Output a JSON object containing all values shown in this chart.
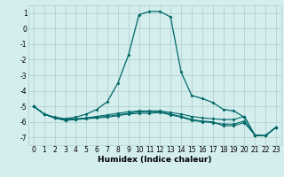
{
  "x": [
    0,
    1,
    2,
    3,
    4,
    5,
    6,
    7,
    8,
    9,
    10,
    11,
    12,
    13,
    14,
    15,
    16,
    17,
    18,
    19,
    20,
    21,
    22,
    23
  ],
  "line_main": [
    -5.0,
    -5.5,
    -5.7,
    -5.8,
    -5.7,
    -5.5,
    -5.2,
    -4.7,
    -3.5,
    -1.7,
    0.9,
    1.1,
    1.1,
    0.75,
    -2.8,
    -4.3,
    -4.5,
    -4.75,
    -5.2,
    -5.3,
    -5.7,
    -6.85,
    -6.9,
    -6.35
  ],
  "line2": [
    -5.0,
    -5.5,
    -5.75,
    -5.85,
    -5.8,
    -5.75,
    -5.65,
    -5.55,
    -5.45,
    -5.35,
    -5.3,
    -5.3,
    -5.3,
    -5.4,
    -5.5,
    -5.65,
    -5.75,
    -5.8,
    -5.85,
    -5.85,
    -5.65,
    -6.85,
    -6.9,
    -6.35
  ],
  "line3": [
    -5.0,
    -5.5,
    -5.75,
    -5.9,
    -5.85,
    -5.8,
    -5.75,
    -5.7,
    -5.6,
    -5.5,
    -5.45,
    -5.45,
    -5.4,
    -5.55,
    -5.7,
    -5.9,
    -6.0,
    -6.05,
    -6.15,
    -6.15,
    -5.95,
    -6.85,
    -6.9,
    -6.35
  ],
  "line4": [
    -5.0,
    -5.5,
    -5.75,
    -5.9,
    -5.85,
    -5.75,
    -5.7,
    -5.65,
    -5.55,
    -5.45,
    -5.35,
    -5.35,
    -5.35,
    -5.5,
    -5.65,
    -5.85,
    -5.95,
    -6.0,
    -6.25,
    -6.25,
    -6.05,
    -6.85,
    -6.9,
    -6.35
  ],
  "bg_color": "#d4eded",
  "line_color": "#006868",
  "grid_color": "#aecece",
  "xlabel": "Humidex (Indice chaleur)",
  "ylim": [
    -7.5,
    1.5
  ],
  "xlim": [
    -0.5,
    23.5
  ],
  "yticks": [
    1,
    0,
    -1,
    -2,
    -3,
    -4,
    -5,
    -6,
    -7
  ],
  "xticks": [
    0,
    1,
    2,
    3,
    4,
    5,
    6,
    7,
    8,
    9,
    10,
    11,
    12,
    13,
    14,
    15,
    16,
    17,
    18,
    19,
    20,
    21,
    22,
    23
  ],
  "tick_fontsize": 5.5,
  "xlabel_fontsize": 6.5
}
